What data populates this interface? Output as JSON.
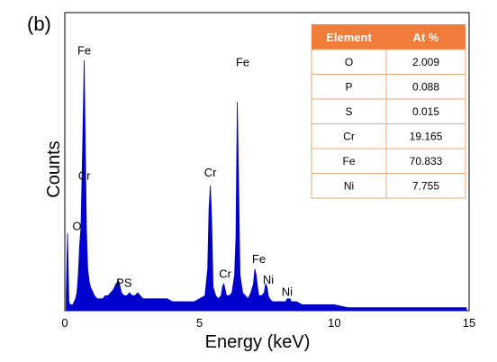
{
  "panel_label": "(b)",
  "chart_data": {
    "type": "area",
    "xlabel": "Energy (keV)",
    "ylabel": "Counts",
    "xlim": [
      0,
      15
    ],
    "ylim": [
      0,
      100
    ],
    "x_ticks": [
      "0",
      "5",
      "10",
      "15"
    ],
    "color": "#0000cc",
    "series": [
      {
        "x": [
          0.05,
          0.1,
          0.15,
          0.2,
          0.25,
          0.3,
          0.35,
          0.4,
          0.45,
          0.5,
          0.55,
          0.6,
          0.65,
          0.7,
          0.72,
          0.75,
          0.8,
          0.85,
          0.9,
          0.95,
          1.0,
          1.1,
          1.2,
          1.3,
          1.4,
          1.5,
          1.6,
          1.7,
          1.8,
          1.9,
          2.0,
          2.1,
          2.2,
          2.3,
          2.4,
          2.5,
          2.6,
          2.7,
          2.8,
          2.9,
          3.0,
          3.2,
          3.4,
          3.6,
          3.8,
          4.0,
          4.2,
          4.4,
          4.6,
          4.8,
          5.0,
          5.2,
          5.3,
          5.35,
          5.4,
          5.45,
          5.5,
          5.6,
          5.7,
          5.8,
          5.85,
          5.9,
          5.95,
          6.0,
          6.1,
          6.2,
          6.3,
          6.35,
          6.4,
          6.45,
          6.5,
          6.6,
          6.7,
          6.8,
          6.9,
          7.0,
          7.05,
          7.1,
          7.15,
          7.2,
          7.3,
          7.4,
          7.45,
          7.5,
          7.55,
          7.6,
          7.7,
          7.8,
          8.0,
          8.2,
          8.25,
          8.3,
          8.35,
          8.4,
          8.6,
          8.8,
          9.0,
          9.5,
          10.0,
          10.5,
          11.0,
          11.5,
          12.0,
          12.5,
          13.0,
          13.5,
          14.0,
          14.5,
          14.9
        ],
        "y": [
          5,
          26,
          3,
          2,
          2,
          2,
          3,
          4,
          6,
          12,
          22,
          28,
          50,
          74,
          84,
          62,
          28,
          14,
          10,
          8,
          7,
          5,
          4,
          4,
          4,
          5,
          5,
          6,
          7,
          9,
          10,
          6,
          5,
          5,
          6,
          5,
          5,
          6,
          5,
          4,
          4,
          4,
          4,
          4,
          4,
          3,
          3,
          3,
          3,
          3,
          4,
          5,
          14,
          34,
          42,
          30,
          8,
          5,
          4,
          5,
          8,
          9,
          7,
          5,
          5,
          6,
          12,
          25,
          70,
          42,
          12,
          6,
          5,
          4,
          6,
          9,
          14,
          12,
          8,
          5,
          5,
          6,
          9,
          8,
          5,
          4,
          3,
          3,
          3,
          3,
          4,
          4,
          4,
          3,
          3,
          2,
          2,
          2,
          2,
          1,
          1,
          1,
          1,
          1,
          1,
          1,
          1,
          1,
          1
        ]
      }
    ],
    "peak_labels": [
      {
        "text": "Fe",
        "x": 0.72,
        "y": 86
      },
      {
        "text": "Cr",
        "x": 0.72,
        "y": 44
      },
      {
        "text": "O",
        "x": 0.45,
        "y": 27
      },
      {
        "text": "PS",
        "x": 2.2,
        "y": 8
      },
      {
        "text": "Cr",
        "x": 5.4,
        "y": 45
      },
      {
        "text": "Fe",
        "x": 6.6,
        "y": 82
      },
      {
        "text": "Cr",
        "x": 5.95,
        "y": 11
      },
      {
        "text": "Fe",
        "x": 7.2,
        "y": 16
      },
      {
        "text": "Ni",
        "x": 7.55,
        "y": 9
      },
      {
        "text": "Ni",
        "x": 8.25,
        "y": 5
      }
    ]
  },
  "table": {
    "header_color": "#f07c3c",
    "border_color": "#e8a878",
    "headers": [
      "Element",
      "At %"
    ],
    "rows": [
      [
        "O",
        "2.009"
      ],
      [
        "P",
        "0.088"
      ],
      [
        "S",
        "0.015"
      ],
      [
        "Cr",
        "19.165"
      ],
      [
        "Fe",
        "70.833"
      ],
      [
        "Ni",
        "7.755"
      ]
    ]
  }
}
